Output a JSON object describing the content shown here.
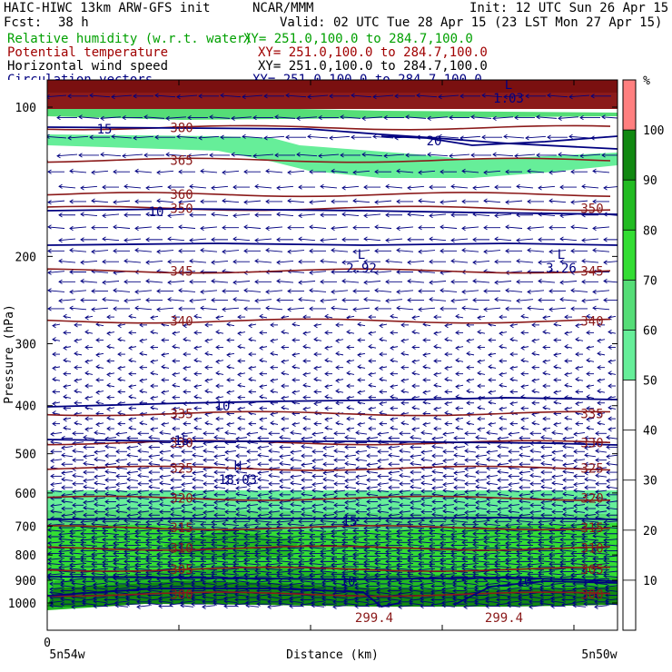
{
  "header": {
    "model": "HAIC-HIWC 13km ARW-GFS init",
    "org": "NCAR/MMM",
    "init": "Init: 12 UTC Sun 26 Apr 15",
    "fcst_label": "Fcst:",
    "fcst_value": "38 h",
    "valid": "Valid: 02 UTC Tue 28 Apr 15 (23 LST Mon 27 Apr 15)"
  },
  "fields": [
    {
      "name": "Relative humidity (w.r.t. water)",
      "xy": "XY= 251.0,100.0 to 284.7,100.0",
      "color": "#00a000"
    },
    {
      "name": "Potential temperature",
      "xy": "XY= 251.0,100.0 to 284.7,100.0",
      "color": "#a00000"
    },
    {
      "name": "Horizontal wind speed",
      "xy": "XY= 251.0,100.0 to 284.7,100.0",
      "color": "#000000"
    },
    {
      "name": "Circulation vectors",
      "xy": "XY= 251.0,100.0 to 284.7,100.0",
      "color": "#000080"
    }
  ],
  "colors": {
    "theta": "#8b1a1a",
    "wind": "#000080",
    "vectors": "#000080",
    "rh_text": "#00a000"
  },
  "chart_data": {
    "type": "cross-section",
    "ylabel": "Pressure (hPa)",
    "xlabel": "Distance (km)",
    "y_scale": "log",
    "ylim": [
      1050,
      85
    ],
    "y_ticks": [
      100,
      200,
      300,
      400,
      500,
      600,
      700,
      800,
      900,
      1000
    ],
    "x_ticks": [
      "0"
    ],
    "x_endpoints": [
      "5n54w",
      "5n50w"
    ],
    "colorbar": {
      "unit": "%",
      "ticks": [
        10,
        20,
        30,
        40,
        50,
        60,
        70,
        80,
        90,
        100
      ],
      "bins": [
        {
          "from": 50,
          "to": 60,
          "color": "#66ee99"
        },
        {
          "from": 60,
          "to": 70,
          "color": "#55dd77"
        },
        {
          "from": 70,
          "to": 80,
          "color": "#33dd33"
        },
        {
          "from": 80,
          "to": 90,
          "color": "#22bb22"
        },
        {
          "from": 90,
          "to": 100,
          "color": "#118811"
        },
        {
          "from": 100,
          "to": 110,
          "color": "#ff7f7f"
        }
      ]
    },
    "theta_contours": [
      {
        "value": 380,
        "label": "380"
      },
      {
        "value": 365,
        "label": "365"
      },
      {
        "value": 360,
        "label": "360"
      },
      {
        "value": 350,
        "label": "350"
      },
      {
        "value": 345,
        "label": "345"
      },
      {
        "value": 340,
        "label": "340"
      },
      {
        "value": 335,
        "label": "335"
      },
      {
        "value": 330,
        "label": "330"
      },
      {
        "value": 325,
        "label": "325"
      },
      {
        "value": 320,
        "label": "320"
      },
      {
        "value": 315,
        "label": "315"
      },
      {
        "value": 310,
        "label": "310"
      },
      {
        "value": 305,
        "label": "305"
      },
      {
        "value": 300,
        "label": "300"
      }
    ],
    "wind_labels": [
      "15",
      "10",
      "20",
      "15",
      "10",
      "10",
      "10",
      "10",
      "15",
      "15",
      "15",
      "10",
      "10"
    ],
    "extrema": [
      {
        "type": "L",
        "value": "2.92"
      },
      {
        "type": "L",
        "value": "3.26"
      },
      {
        "type": "H",
        "value": "18.03"
      },
      {
        "type": "L",
        "value": "1.03"
      },
      {
        "type": "",
        "value": "299.4"
      },
      {
        "type": "",
        "value": "299.4"
      }
    ]
  }
}
